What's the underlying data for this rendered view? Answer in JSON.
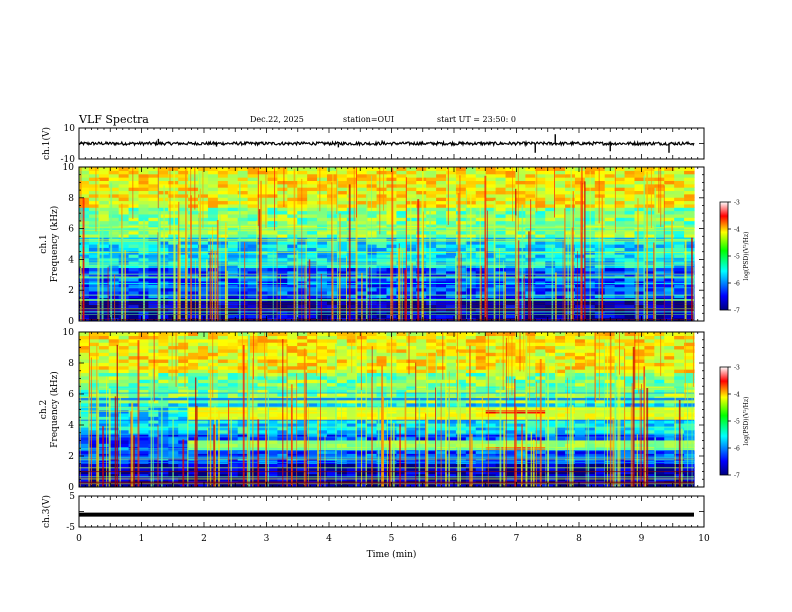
{
  "header": {
    "title": "VLF Spectra",
    "date": "Dec.22, 2025",
    "station": "station=OUI",
    "start": "start UT = 23:50: 0"
  },
  "chart_data": [
    {
      "type": "line",
      "panel_id": "ch1-waveform",
      "title": "ch.1(V)",
      "ylabel": "ch.1(V)",
      "ylim": [
        -10,
        10
      ],
      "yticks": [
        10,
        -10
      ],
      "baseline": 0,
      "amplitude_approx": 1,
      "spikes": [
        {
          "t": 1.27,
          "v": 3
        },
        {
          "t": 2.2,
          "v": -2
        },
        {
          "t": 4.15,
          "v": -2.5
        },
        {
          "t": 4.85,
          "v": 2
        },
        {
          "t": 7.3,
          "v": -6
        },
        {
          "t": 7.62,
          "v": 6
        },
        {
          "t": 8.5,
          "v": -5
        },
        {
          "t": 9.44,
          "v": -6
        }
      ]
    },
    {
      "type": "heatmap",
      "panel_id": "ch1-spectrogram",
      "ylabel": "ch.1 Frequency (kHz)",
      "ylim": [
        0,
        10
      ],
      "yticks": [
        0,
        2,
        4,
        6,
        8,
        10
      ],
      "xlim": [
        0,
        10
      ],
      "data_end_min": 9.84,
      "zlim": [
        -7,
        -3
      ],
      "colorbar_label": "log(PSD)(V²/Hz)",
      "colorbar_ticks": [
        "-3",
        "-4",
        "-5",
        "-6",
        "-7"
      ],
      "bands": [
        {
          "f": [
            0,
            1.5
          ],
          "z": -6.8
        },
        {
          "f": [
            1.5,
            3.5
          ],
          "z": -6.2
        },
        {
          "f": [
            3.5,
            5.5
          ],
          "z": -5.6
        },
        {
          "f": [
            5.5,
            7.5
          ],
          "z": -5.0
        },
        {
          "f": [
            7.5,
            10
          ],
          "z": -4.5
        }
      ]
    },
    {
      "type": "heatmap",
      "panel_id": "ch2-spectrogram",
      "ylabel": "ch.2 Frequency (kHz)",
      "ylim": [
        0,
        10
      ],
      "yticks": [
        0,
        2,
        4,
        6,
        8,
        10
      ],
      "xlim": [
        0,
        10
      ],
      "data_end_min": 9.84,
      "zlim": [
        -7,
        -3
      ],
      "colorbar_label": "log(PSD)(V²/Hz)",
      "colorbar_ticks": [
        "-3",
        "-4",
        "-5",
        "-6",
        "-7"
      ],
      "emission_bands": [
        {
          "t": [
            1.68,
            9.84
          ],
          "f": [
            4.4,
            5.2
          ],
          "z": -4.6
        },
        {
          "t": [
            1.68,
            9.84
          ],
          "f": [
            2.3,
            3.0
          ],
          "z": -4.9
        },
        {
          "t": [
            6.45,
            7.45
          ],
          "f": [
            4.7,
            5.1
          ],
          "z": -3.6
        },
        {
          "t": [
            6.45,
            7.45
          ],
          "f": [
            2.3,
            2.6
          ],
          "z": -3.9
        }
      ]
    },
    {
      "type": "line",
      "panel_id": "ch3-waveform",
      "ylabel": "ch.3(V)",
      "ylim": [
        -5,
        5
      ],
      "yticks": [
        5,
        -5
      ],
      "level": -1,
      "xlabel": "Time (min)",
      "xlim": [
        0,
        10
      ],
      "xticks": [
        "0",
        "1",
        "2",
        "3",
        "4",
        "5",
        "6",
        "7",
        "8",
        "9",
        "10"
      ]
    }
  ]
}
